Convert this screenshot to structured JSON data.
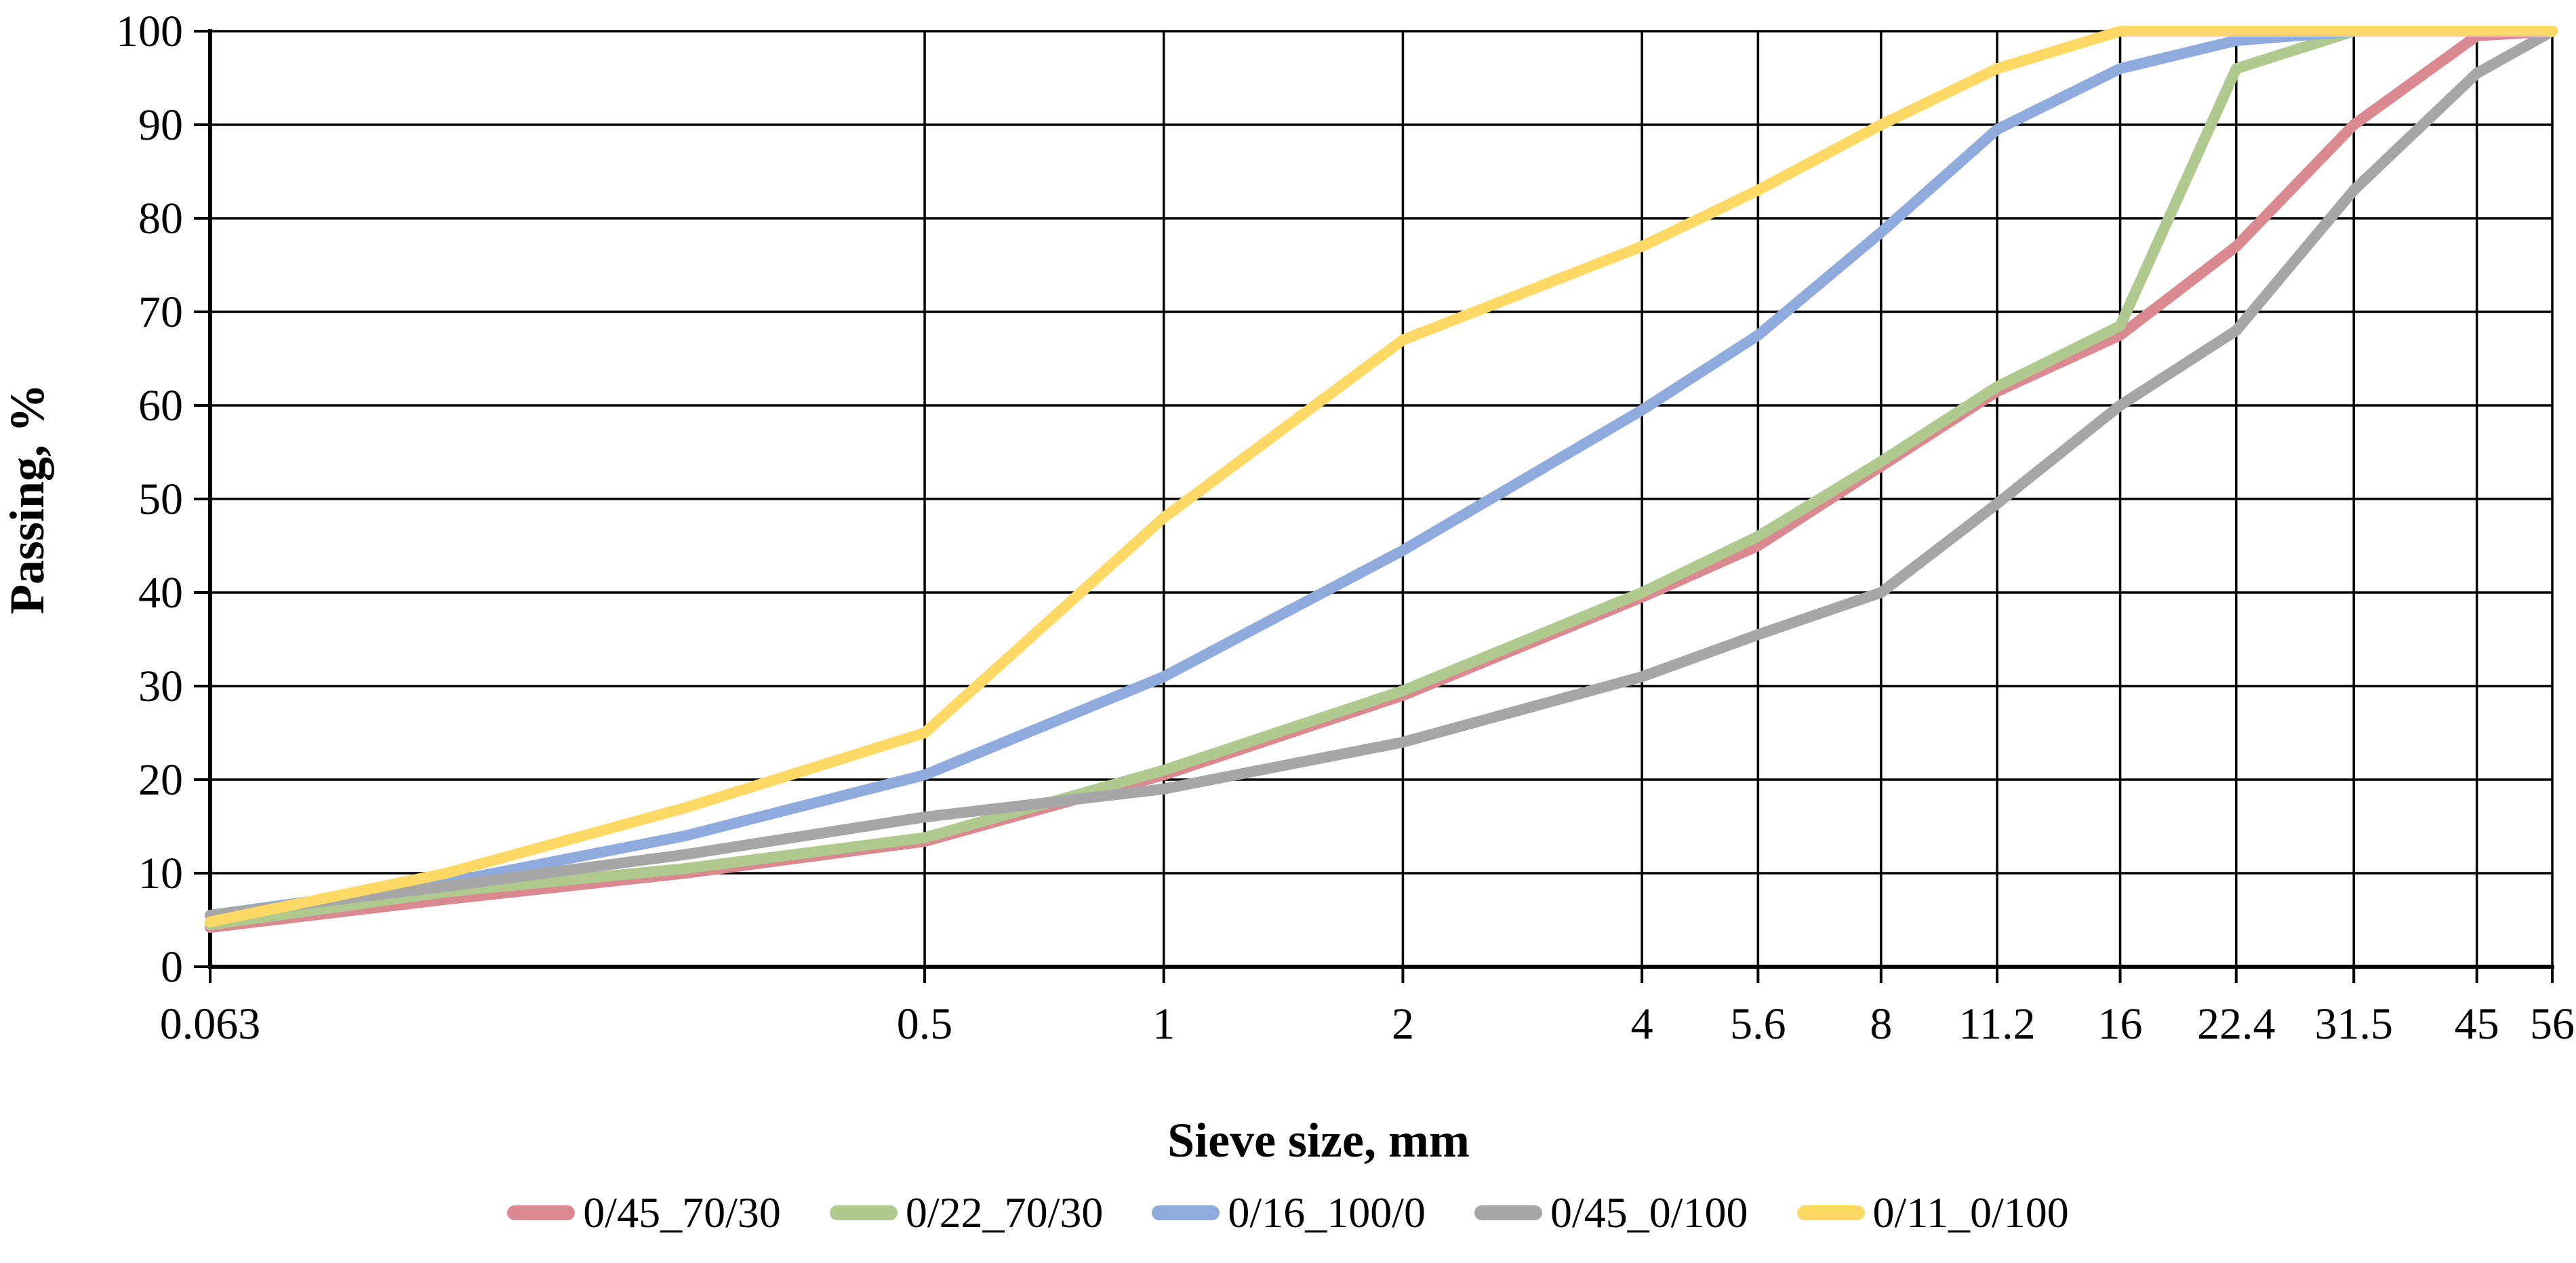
{
  "chart_data": {
    "type": "line",
    "title": "",
    "xlabel": "Sieve size, mm",
    "ylabel": "Passing, %",
    "x_scale": "log2",
    "xlim": [
      0.063,
      56
    ],
    "ylim": [
      0,
      100
    ],
    "grid": true,
    "legend_position": "bottom",
    "x_ticks": [
      0.063,
      0.5,
      1,
      2,
      4,
      5.6,
      8,
      11.2,
      16,
      22.4,
      31.5,
      45,
      56
    ],
    "x_tick_labels": [
      "0.063",
      "0.5",
      "1",
      "2",
      "4",
      "5.6",
      "8",
      "11.2",
      "16",
      "22.4",
      "31.5",
      "45",
      "56"
    ],
    "y_ticks": [
      0,
      10,
      20,
      30,
      40,
      50,
      60,
      70,
      80,
      90,
      100
    ],
    "x": [
      0.063,
      0.125,
      0.25,
      0.5,
      1,
      2,
      4,
      5.6,
      8,
      11.2,
      16,
      22.4,
      31.5,
      45,
      56
    ],
    "series": [
      {
        "name": "0/45_70/30",
        "color": "#D9898F",
        "values": [
          4.2,
          7.2,
          10,
          13.4,
          20.5,
          29,
          39.5,
          45,
          53.5,
          61.5,
          67.5,
          77,
          90,
          99.5,
          100
        ]
      },
      {
        "name": "0/22_70/30",
        "color": "#AFC98F",
        "values": [
          4.5,
          8,
          10.5,
          13.8,
          21,
          29.5,
          40,
          46,
          54,
          62,
          68.5,
          96,
          100,
          100,
          100
        ]
      },
      {
        "name": "0/16_100/0",
        "color": "#8FAADC",
        "values": [
          5.5,
          9,
          14,
          20.5,
          31,
          44.5,
          59.5,
          67.5,
          78.5,
          89.5,
          96,
          99,
          100,
          100,
          100
        ]
      },
      {
        "name": "0/45_0/100",
        "color": "#A6A6A6",
        "values": [
          5.5,
          8.6,
          12,
          16,
          19,
          24,
          31,
          35.5,
          40,
          49.5,
          60,
          68,
          83,
          95.5,
          100
        ]
      },
      {
        "name": "0/11_0/100",
        "color": "#FFD966",
        "values": [
          4.8,
          10,
          17,
          25,
          48,
          67,
          77,
          83,
          90,
          96,
          100,
          100,
          100,
          100,
          100
        ]
      }
    ],
    "axis_color": "#000000"
  }
}
